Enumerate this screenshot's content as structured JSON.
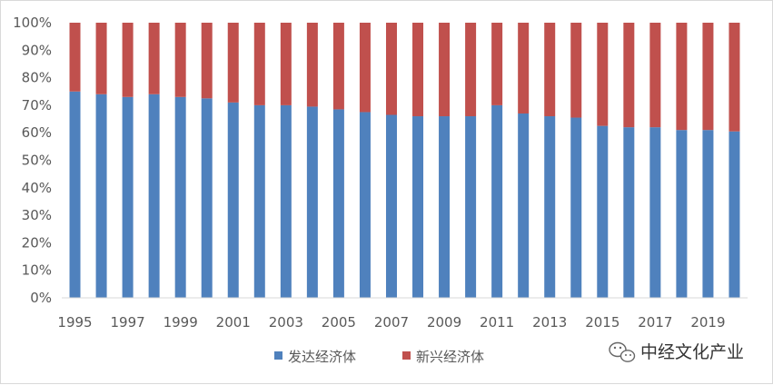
{
  "chart_data": {
    "type": "bar",
    "stacked": true,
    "percent": true,
    "categories": [
      "1995",
      "1996",
      "1997",
      "1998",
      "1999",
      "2000",
      "2001",
      "2002",
      "2003",
      "2004",
      "2005",
      "2006",
      "2007",
      "2008",
      "2009",
      "2010",
      "2011",
      "2012",
      "2013",
      "2014",
      "2015",
      "2016",
      "2017",
      "2018",
      "2019",
      "2020"
    ],
    "x_tick_labels": [
      "1995",
      "1997",
      "1999",
      "2001",
      "2003",
      "2005",
      "2007",
      "2009",
      "2011",
      "2013",
      "2015",
      "2017",
      "2019"
    ],
    "y_tick_labels": [
      "0%",
      "10%",
      "20%",
      "30%",
      "40%",
      "50%",
      "60%",
      "70%",
      "80%",
      "90%",
      "100%"
    ],
    "ylim": [
      0,
      100
    ],
    "series": [
      {
        "name": "发达经济体",
        "color": "#4f81bd",
        "values": [
          75,
          74,
          73,
          74,
          73,
          72.5,
          71,
          70,
          70,
          69.5,
          68.5,
          67.5,
          66.5,
          66,
          66,
          66,
          70,
          67,
          66,
          65.5,
          62.5,
          62,
          62,
          61,
          61,
          60.5
        ]
      },
      {
        "name": "新兴经济体",
        "color": "#c0504d",
        "values": [
          25,
          26,
          27,
          26,
          27,
          27.5,
          29,
          30,
          30,
          30.5,
          31.5,
          32.5,
          33.5,
          34,
          34,
          34,
          30,
          33,
          34,
          34.5,
          37.5,
          38,
          38,
          39,
          39,
          39.5
        ]
      }
    ],
    "xlabel": "",
    "ylabel": "",
    "grid": false,
    "legend_position": "bottom"
  },
  "watermark": {
    "text": "中经文化产业",
    "icon": "wechat-icon"
  }
}
